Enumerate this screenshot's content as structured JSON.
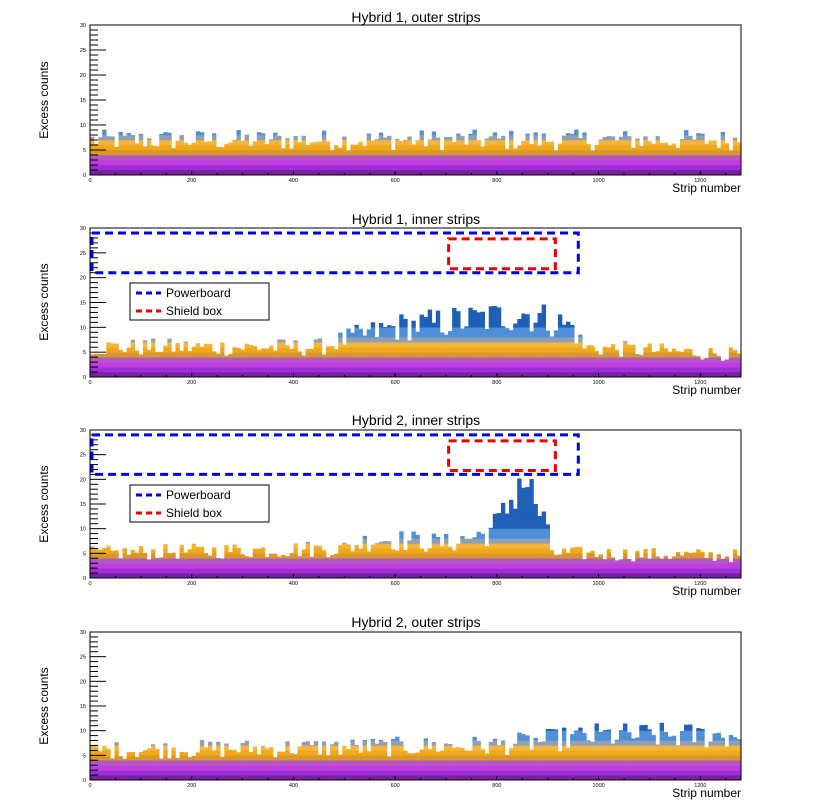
{
  "chart_data": [
    {
      "type": "heatmap",
      "title": "Hybrid 1, outer strips",
      "xlabel": "Strip number",
      "ylabel": "Excess counts",
      "xlim": [
        0,
        1280
      ],
      "ylim": [
        0,
        30
      ],
      "x_ticks": [
        "0",
        "200",
        "400",
        "600",
        "800",
        "1000",
        "1200"
      ],
      "y_ticks": [
        "0",
        "5",
        "10",
        "15",
        "20",
        "25",
        "30"
      ],
      "profile": {
        "strip": [
          0,
          200,
          400,
          600,
          800,
          1000,
          1280
        ],
        "typical_max_counts": [
          7,
          7,
          7,
          7,
          7,
          7,
          7
        ]
      },
      "annotations": []
    },
    {
      "type": "heatmap",
      "title": "Hybrid 1, inner strips",
      "xlabel": "Strip number",
      "ylabel": "Excess counts",
      "xlim": [
        0,
        1280
      ],
      "ylim": [
        0,
        30
      ],
      "x_ticks": [
        "0",
        "200",
        "400",
        "600",
        "800",
        "1000",
        "1200"
      ],
      "y_ticks": [
        "0",
        "5",
        "10",
        "15",
        "20",
        "25",
        "30"
      ],
      "profile": {
        "strip": [
          0,
          450,
          520,
          600,
          700,
          800,
          850,
          950,
          970,
          1280
        ],
        "typical_max_counts": [
          6,
          6,
          8,
          10,
          11,
          12,
          13,
          10,
          6,
          4.5
        ]
      },
      "annotations": [
        {
          "label": "Powerboard",
          "color": "#0000ee",
          "strip_range": [
            0,
            960
          ],
          "count_range": [
            21,
            29
          ]
        },
        {
          "label": "Shield box",
          "color": "#ee0000",
          "strip_range": [
            705,
            915
          ],
          "count_range": [
            21.8,
            27.8
          ]
        }
      ]
    },
    {
      "type": "heatmap",
      "title": "Hybrid 2, inner strips",
      "xlabel": "Strip number",
      "ylabel": "Excess counts",
      "xlim": [
        0,
        1280
      ],
      "ylim": [
        0,
        30
      ],
      "x_ticks": [
        "0",
        "200",
        "400",
        "600",
        "800",
        "1000",
        "1200"
      ],
      "y_ticks": [
        "0",
        "5",
        "10",
        "15",
        "20",
        "25",
        "30"
      ],
      "profile": {
        "strip": [
          0,
          500,
          560,
          700,
          780,
          810,
          850,
          890,
          910,
          1280
        ],
        "typical_max_counts": [
          5,
          6,
          8,
          7,
          9,
          12,
          21,
          12,
          5,
          4.5
        ]
      },
      "annotations": [
        {
          "label": "Powerboard",
          "color": "#0000ee",
          "strip_range": [
            0,
            960
          ],
          "count_range": [
            21,
            29
          ]
        },
        {
          "label": "Shield box",
          "color": "#ee0000",
          "strip_range": [
            705,
            915
          ],
          "count_range": [
            21.8,
            27.8
          ]
        }
      ]
    },
    {
      "type": "heatmap",
      "title": "Hybrid 2, outer strips",
      "xlabel": "Strip number",
      "ylabel": "Excess counts",
      "xlim": [
        0,
        1280
      ],
      "ylim": [
        0,
        30
      ],
      "x_ticks": [
        "0",
        "200",
        "400",
        "600",
        "800",
        "1000",
        "1200"
      ],
      "y_ticks": [
        "0",
        "5",
        "10",
        "15",
        "20",
        "25",
        "30"
      ],
      "profile": {
        "strip": [
          0,
          400,
          800,
          1000,
          1280
        ],
        "typical_max_counts": [
          6,
          6.5,
          7,
          9,
          9
        ]
      },
      "annotations": []
    }
  ]
}
